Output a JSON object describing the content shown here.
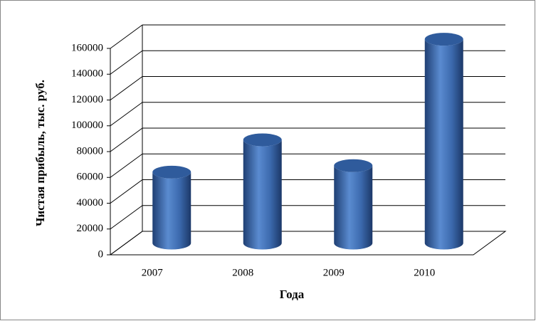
{
  "chart_data": {
    "type": "bar",
    "x_label": "Года",
    "y_label": "Чистая прибыль, тыс. руб.",
    "categories": [
      "2007",
      "2008",
      "2009",
      "2010"
    ],
    "values": [
      55000,
      80000,
      60000,
      158000
    ],
    "color": "#3f6fb4",
    "ylim": [
      0,
      160000
    ],
    "yticks": [
      0,
      20000,
      40000,
      60000,
      80000,
      100000,
      120000,
      140000,
      160000
    ],
    "grid": true
  }
}
